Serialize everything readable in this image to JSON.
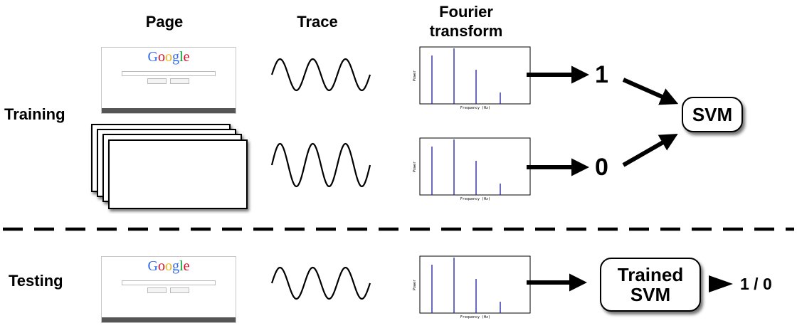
{
  "columns": {
    "page": "Page",
    "trace": "Trace",
    "fourier": "Fourier\ntransform"
  },
  "rows": {
    "training": "Training",
    "testing": "Testing"
  },
  "labels": {
    "one": "1",
    "zero": "0",
    "svm": "SVM",
    "trained_svm": "Trained\nSVM",
    "result": "1 / 0"
  },
  "google_page": {
    "logo_letters": [
      "G",
      "o",
      "o",
      "g",
      "l",
      "e"
    ],
    "logo_colors": [
      "#3369e8",
      "#d50f25",
      "#eeb211",
      "#3369e8",
      "#009925",
      "#d50f25"
    ]
  },
  "spectrum": {
    "ylabel": "Power",
    "xlabel": "Frequency (Hz)",
    "line_color": "#2a2aa8"
  },
  "colors": {
    "arrow": "#000000",
    "divider": "#000000"
  }
}
